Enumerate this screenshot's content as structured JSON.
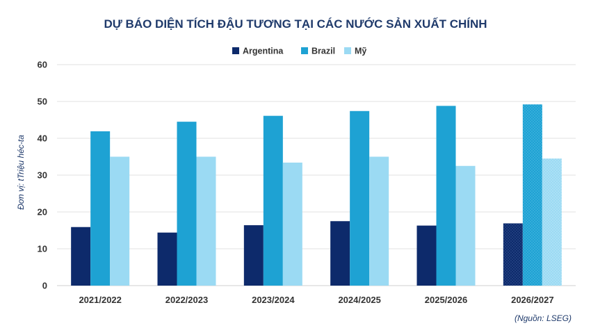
{
  "chart_data": {
    "type": "bar",
    "title": "DỰ BÁO DIỆN TÍCH ĐẬU TƯƠNG TẠI CÁC NƯỚC SẢN XUẤT CHÍNH",
    "ylabel": "Đơn vị: tTriệu héc-ta",
    "xlabel": "",
    "categories": [
      "2021/2022",
      "2022/2023",
      "2023/2024",
      "2024/2025",
      "2025/2026",
      "2026/2027"
    ],
    "ylim": [
      0,
      60
    ],
    "yticks": [
      0,
      10,
      20,
      30,
      40,
      50,
      60
    ],
    "grid": true,
    "legend_position": "top-center",
    "series": [
      {
        "name": "Argentina",
        "color": "#0d2a6b",
        "values": [
          15.9,
          14.4,
          16.4,
          17.5,
          16.3,
          16.9
        ]
      },
      {
        "name": "Brazil",
        "color": "#1ea2d3",
        "values": [
          41.9,
          44.5,
          46.1,
          47.4,
          48.8,
          49.2
        ]
      },
      {
        "name": "Mỹ",
        "color": "#9bdaf3",
        "values": [
          35.0,
          35.0,
          33.4,
          35.0,
          32.5,
          34.5
        ]
      }
    ],
    "forecast_categories": [
      "2026/2027"
    ],
    "source": "(Nguồn: LSEG)"
  }
}
